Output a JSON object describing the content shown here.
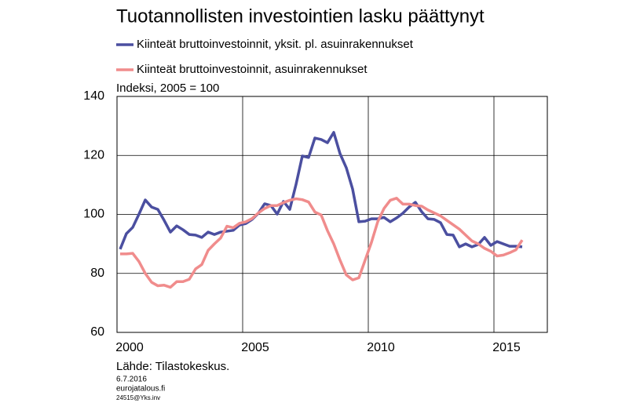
{
  "chart_data": {
    "type": "line",
    "title": "Tuotannollisten investointien lasku päättynyt",
    "y_label": "Indeksi, 2005 = 100",
    "source": "Lähde: Tilastokeskus.",
    "footnotes": [
      "6.7.2016",
      "eurojatalous.fi",
      "24515@Yks.inv"
    ],
    "x": [
      2000.125,
      2000.375,
      2000.625,
      2000.875,
      2001.125,
      2001.375,
      2001.625,
      2001.875,
      2002.125,
      2002.375,
      2002.625,
      2002.875,
      2003.125,
      2003.375,
      2003.625,
      2003.875,
      2004.125,
      2004.375,
      2004.625,
      2004.875,
      2005.125,
      2005.375,
      2005.625,
      2005.875,
      2006.125,
      2006.375,
      2006.625,
      2006.875,
      2007.125,
      2007.375,
      2007.625,
      2007.875,
      2008.125,
      2008.375,
      2008.625,
      2008.875,
      2009.125,
      2009.375,
      2009.625,
      2009.875,
      2010.125,
      2010.375,
      2010.625,
      2010.875,
      2011.125,
      2011.375,
      2011.625,
      2011.875,
      2012.125,
      2012.375,
      2012.625,
      2012.875,
      2013.125,
      2013.375,
      2013.625,
      2013.875,
      2014.125,
      2014.375,
      2014.625,
      2014.875,
      2015.125,
      2015.375,
      2015.625,
      2015.875,
      2016.125
    ],
    "series": [
      {
        "name": "Kiinteät bruttoinvestoinnit, yksit. pl. asuinrakennukset",
        "color": "#4b4fa0",
        "values": [
          88.2,
          93.5,
          95.6,
          100.1,
          104.9,
          102.5,
          101.7,
          98,
          94,
          96.1,
          94.8,
          93.2,
          93,
          92.2,
          94,
          93.2,
          94,
          94.3,
          94.6,
          96.4,
          96.9,
          98.3,
          100.4,
          103.6,
          103,
          100.1,
          104.4,
          101.7,
          110.2,
          119.8,
          119.3,
          125.9,
          125.4,
          124.3,
          127.8,
          120.6,
          115.8,
          108.6,
          97.5,
          97.7,
          98.5,
          98.5,
          99,
          97.5,
          98.8,
          100.4,
          102.5,
          104.1,
          100.9,
          98.5,
          98.3,
          97.2,
          93.2,
          93,
          89,
          90,
          89,
          89.8,
          92.2,
          89.5,
          90.8,
          90,
          89.2,
          89.2,
          89
        ]
      },
      {
        "name": "Kiinteät bruttoinvestoinnit, asuinrakennukset",
        "color": "#f08c8c",
        "values": [
          86.6,
          86.6,
          86.8,
          84,
          80,
          77,
          75.8,
          76,
          75.3,
          77.2,
          77.2,
          78,
          81.5,
          83,
          87.8,
          90,
          92,
          96,
          95.5,
          97,
          97.5,
          98.6,
          100.5,
          102,
          103,
          103,
          104,
          104.8,
          105.3,
          105,
          104.2,
          100.8,
          99.8,
          94.5,
          90,
          84.5,
          79.5,
          77.8,
          78.5,
          84.5,
          90.5,
          97.5,
          102,
          104.8,
          105.5,
          103.5,
          103.5,
          103,
          102.8,
          101.5,
          100.5,
          99.5,
          98,
          96.5,
          95,
          93,
          91,
          90,
          88.5,
          87.5,
          85.9,
          86.2,
          87,
          88,
          91.3
        ]
      }
    ],
    "xlim": [
      2000,
      2017.125
    ],
    "xticks": [
      {
        "value": 2000.5,
        "label": "2000"
      },
      {
        "value": 2005.5,
        "label": "2005"
      },
      {
        "value": 2010.5,
        "label": "2010"
      },
      {
        "value": 2015.5,
        "label": "2015"
      }
    ],
    "xgrid": [
      2005,
      2010,
      2015
    ],
    "ylim": [
      60,
      140
    ],
    "yticks": [
      60,
      80,
      100,
      120,
      140
    ],
    "grid": true
  }
}
